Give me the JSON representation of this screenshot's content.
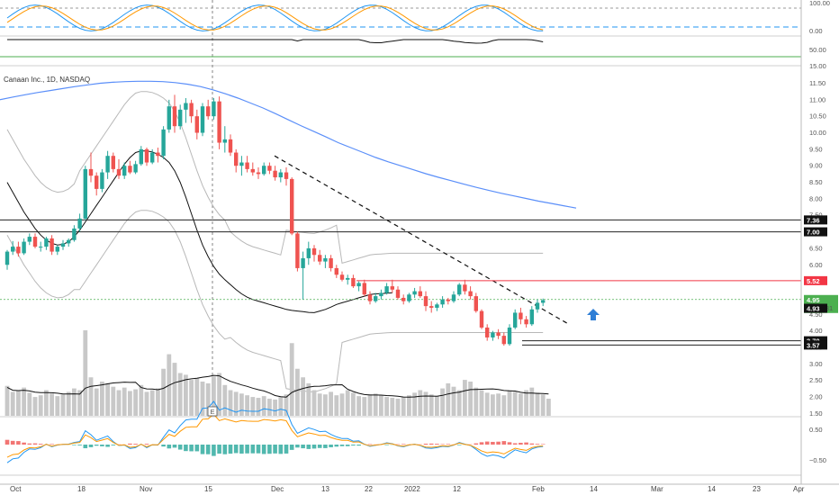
{
  "header": {
    "title": "Canaan Inc., 1D, NASDAQ"
  },
  "colors": {
    "up": "#26a69a",
    "down": "#ef5350",
    "ma": "#5b8ff9",
    "stoch_k": "#2196f3",
    "stoch_d": "#ff9800",
    "resistance": "#f23645",
    "price_box": "#4caf50"
  },
  "chart_data": {
    "type": "candlestick",
    "symbol": "Canaan Inc.",
    "interval": "1D",
    "exchange": "NASDAQ",
    "x_labels": [
      "Oct",
      "18",
      "Nov",
      "15",
      "Dec",
      "13",
      "22",
      "2022",
      "12",
      "Feb",
      "14",
      "Mar",
      "14",
      "23",
      "Apr"
    ],
    "price_axis": {
      "ticks": [
        "11.50",
        "11.00",
        "10.50",
        "10.00",
        "9.50",
        "9.00",
        "8.50",
        "8.00",
        "7.50",
        "7.00",
        "6.50",
        "6.00",
        "5.50",
        "5.00",
        "4.50",
        "4.00",
        "3.50",
        "3.00",
        "2.50",
        "2.00",
        "1.50"
      ],
      "range": [
        1.4,
        11.65
      ]
    },
    "candles": [
      {
        "o": 6.0,
        "h": 6.45,
        "l": 5.85,
        "c": 6.4
      },
      {
        "o": 6.4,
        "h": 6.72,
        "l": 6.3,
        "c": 6.55
      },
      {
        "o": 6.55,
        "h": 6.7,
        "l": 6.25,
        "c": 6.35
      },
      {
        "o": 6.35,
        "h": 6.8,
        "l": 6.3,
        "c": 6.7
      },
      {
        "o": 6.7,
        "h": 6.95,
        "l": 6.6,
        "c": 6.85
      },
      {
        "o": 6.85,
        "h": 6.95,
        "l": 6.5,
        "c": 6.55
      },
      {
        "o": 6.55,
        "h": 6.7,
        "l": 6.4,
        "c": 6.55
      },
      {
        "o": 6.55,
        "h": 6.85,
        "l": 6.45,
        "c": 6.8
      },
      {
        "o": 6.8,
        "h": 6.9,
        "l": 6.3,
        "c": 6.4
      },
      {
        "o": 6.4,
        "h": 6.6,
        "l": 6.3,
        "c": 6.55
      },
      {
        "o": 6.55,
        "h": 6.75,
        "l": 6.45,
        "c": 6.65
      },
      {
        "o": 6.65,
        "h": 6.8,
        "l": 6.55,
        "c": 6.75
      },
      {
        "o": 6.75,
        "h": 7.2,
        "l": 6.7,
        "c": 7.1
      },
      {
        "o": 7.1,
        "h": 7.55,
        "l": 7.0,
        "c": 7.4
      },
      {
        "o": 7.4,
        "h": 9.0,
        "l": 7.35,
        "c": 8.9
      },
      {
        "o": 8.9,
        "h": 9.4,
        "l": 8.5,
        "c": 8.7
      },
      {
        "o": 8.7,
        "h": 8.8,
        "l": 8.1,
        "c": 8.3
      },
      {
        "o": 8.3,
        "h": 8.9,
        "l": 8.2,
        "c": 8.8
      },
      {
        "o": 8.8,
        "h": 9.45,
        "l": 8.6,
        "c": 9.3
      },
      {
        "o": 9.3,
        "h": 9.4,
        "l": 8.8,
        "c": 8.9
      },
      {
        "o": 8.9,
        "h": 9.2,
        "l": 8.6,
        "c": 8.7
      },
      {
        "o": 8.7,
        "h": 9.1,
        "l": 8.6,
        "c": 9.0
      },
      {
        "o": 9.0,
        "h": 9.15,
        "l": 8.75,
        "c": 8.8
      },
      {
        "o": 8.8,
        "h": 9.15,
        "l": 8.75,
        "c": 9.05
      },
      {
        "o": 9.05,
        "h": 9.6,
        "l": 9.0,
        "c": 9.5
      },
      {
        "o": 9.5,
        "h": 9.55,
        "l": 9.0,
        "c": 9.1
      },
      {
        "o": 9.1,
        "h": 9.5,
        "l": 9.05,
        "c": 9.4
      },
      {
        "o": 9.4,
        "h": 9.55,
        "l": 9.1,
        "c": 9.3
      },
      {
        "o": 9.3,
        "h": 10.2,
        "l": 9.2,
        "c": 10.1
      },
      {
        "o": 10.1,
        "h": 11.0,
        "l": 10.0,
        "c": 10.8
      },
      {
        "o": 10.8,
        "h": 11.15,
        "l": 10.0,
        "c": 10.2
      },
      {
        "o": 10.2,
        "h": 10.85,
        "l": 10.1,
        "c": 10.7
      },
      {
        "o": 10.7,
        "h": 11.05,
        "l": 10.3,
        "c": 10.9
      },
      {
        "o": 10.9,
        "h": 11.0,
        "l": 10.3,
        "c": 10.5
      },
      {
        "o": 10.5,
        "h": 10.7,
        "l": 9.8,
        "c": 10.0
      },
      {
        "o": 10.0,
        "h": 10.9,
        "l": 9.9,
        "c": 10.8
      },
      {
        "o": 10.8,
        "h": 11.0,
        "l": 10.4,
        "c": 10.5
      },
      {
        "o": 10.5,
        "h": 11.05,
        "l": 10.4,
        "c": 10.95
      },
      {
        "o": 10.95,
        "h": 11.1,
        "l": 9.5,
        "c": 9.7
      },
      {
        "o": 9.7,
        "h": 10.2,
        "l": 9.4,
        "c": 9.8
      },
      {
        "o": 9.8,
        "h": 9.95,
        "l": 9.3,
        "c": 9.4
      },
      {
        "o": 9.4,
        "h": 9.5,
        "l": 8.8,
        "c": 9.0
      },
      {
        "o": 9.0,
        "h": 9.3,
        "l": 8.7,
        "c": 9.1
      },
      {
        "o": 9.1,
        "h": 9.3,
        "l": 8.8,
        "c": 8.9
      },
      {
        "o": 8.9,
        "h": 9.1,
        "l": 8.7,
        "c": 8.8
      },
      {
        "o": 8.8,
        "h": 8.95,
        "l": 8.6,
        "c": 8.75
      },
      {
        "o": 8.75,
        "h": 9.1,
        "l": 8.7,
        "c": 9.0
      },
      {
        "o": 9.0,
        "h": 9.1,
        "l": 8.75,
        "c": 8.85
      },
      {
        "o": 8.85,
        "h": 9.0,
        "l": 8.55,
        "c": 8.65
      },
      {
        "o": 8.65,
        "h": 8.9,
        "l": 8.5,
        "c": 8.8
      },
      {
        "o": 8.8,
        "h": 8.95,
        "l": 8.4,
        "c": 8.6
      },
      {
        "o": 8.6,
        "h": 8.65,
        "l": 6.9,
        "c": 6.95
      },
      {
        "o": 6.95,
        "h": 7.0,
        "l": 5.8,
        "c": 5.9
      },
      {
        "o": 5.9,
        "h": 6.4,
        "l": 4.95,
        "c": 6.2
      },
      {
        "o": 6.2,
        "h": 6.7,
        "l": 6.0,
        "c": 6.5
      },
      {
        "o": 6.5,
        "h": 6.6,
        "l": 6.1,
        "c": 6.3
      },
      {
        "o": 6.3,
        "h": 6.45,
        "l": 6.0,
        "c": 6.1
      },
      {
        "o": 6.1,
        "h": 6.3,
        "l": 5.9,
        "c": 6.2
      },
      {
        "o": 6.2,
        "h": 6.3,
        "l": 5.8,
        "c": 5.9
      },
      {
        "o": 5.9,
        "h": 6.0,
        "l": 5.6,
        "c": 5.7
      },
      {
        "o": 5.7,
        "h": 5.8,
        "l": 5.5,
        "c": 5.55
      },
      {
        "o": 5.55,
        "h": 5.7,
        "l": 5.4,
        "c": 5.6
      },
      {
        "o": 5.6,
        "h": 5.7,
        "l": 5.3,
        "c": 5.35
      },
      {
        "o": 5.35,
        "h": 5.5,
        "l": 5.2,
        "c": 5.45
      },
      {
        "o": 5.45,
        "h": 5.55,
        "l": 5.05,
        "c": 5.1
      },
      {
        "o": 5.1,
        "h": 5.2,
        "l": 4.8,
        "c": 4.9
      },
      {
        "o": 4.9,
        "h": 5.15,
        "l": 4.85,
        "c": 5.05
      },
      {
        "o": 5.05,
        "h": 5.25,
        "l": 4.95,
        "c": 5.15
      },
      {
        "o": 5.15,
        "h": 5.45,
        "l": 5.1,
        "c": 5.35
      },
      {
        "o": 5.35,
        "h": 5.55,
        "l": 5.15,
        "c": 5.25
      },
      {
        "o": 5.25,
        "h": 5.35,
        "l": 4.95,
        "c": 5.0
      },
      {
        "o": 5.0,
        "h": 5.1,
        "l": 4.8,
        "c": 4.9
      },
      {
        "o": 4.9,
        "h": 5.15,
        "l": 4.85,
        "c": 5.1
      },
      {
        "o": 5.1,
        "h": 5.3,
        "l": 5.0,
        "c": 5.2
      },
      {
        "o": 5.2,
        "h": 5.35,
        "l": 5.0,
        "c": 5.05
      },
      {
        "o": 5.05,
        "h": 5.2,
        "l": 4.6,
        "c": 4.75
      },
      {
        "o": 4.75,
        "h": 4.9,
        "l": 4.55,
        "c": 4.7
      },
      {
        "o": 4.7,
        "h": 4.85,
        "l": 4.6,
        "c": 4.8
      },
      {
        "o": 4.8,
        "h": 5.05,
        "l": 4.7,
        "c": 4.95
      },
      {
        "o": 4.95,
        "h": 5.0,
        "l": 4.8,
        "c": 4.9
      },
      {
        "o": 4.9,
        "h": 5.2,
        "l": 4.85,
        "c": 5.1
      },
      {
        "o": 5.1,
        "h": 5.45,
        "l": 5.05,
        "c": 5.4
      },
      {
        "o": 5.4,
        "h": 5.55,
        "l": 5.1,
        "c": 5.2
      },
      {
        "o": 5.2,
        "h": 5.35,
        "l": 4.95,
        "c": 5.05
      },
      {
        "o": 5.05,
        "h": 5.15,
        "l": 4.55,
        "c": 4.6
      },
      {
        "o": 4.6,
        "h": 4.65,
        "l": 4.05,
        "c": 4.1
      },
      {
        "o": 4.1,
        "h": 4.2,
        "l": 3.7,
        "c": 3.8
      },
      {
        "o": 3.8,
        "h": 4.0,
        "l": 3.7,
        "c": 3.95
      },
      {
        "o": 3.95,
        "h": 4.05,
        "l": 3.75,
        "c": 3.85
      },
      {
        "o": 3.85,
        "h": 3.95,
        "l": 3.55,
        "c": 3.6
      },
      {
        "o": 3.6,
        "h": 4.2,
        "l": 3.55,
        "c": 4.1
      },
      {
        "o": 4.1,
        "h": 4.65,
        "l": 4.05,
        "c": 4.55
      },
      {
        "o": 4.55,
        "h": 4.7,
        "l": 4.2,
        "c": 4.35
      },
      {
        "o": 4.35,
        "h": 4.45,
        "l": 4.1,
        "c": 4.2
      },
      {
        "o": 4.2,
        "h": 4.75,
        "l": 4.15,
        "c": 4.65
      },
      {
        "o": 4.65,
        "h": 4.95,
        "l": 4.55,
        "c": 4.85
      },
      {
        "o": 4.85,
        "h": 4.98,
        "l": 4.75,
        "c": 4.93
      }
    ],
    "volume": [
      0.35,
      0.28,
      0.3,
      0.33,
      0.27,
      0.22,
      0.24,
      0.3,
      0.26,
      0.23,
      0.25,
      0.28,
      0.32,
      0.3,
      1.0,
      0.45,
      0.32,
      0.4,
      0.38,
      0.34,
      0.3,
      0.33,
      0.29,
      0.31,
      0.36,
      0.28,
      0.3,
      0.32,
      0.55,
      0.72,
      0.62,
      0.5,
      0.48,
      0.42,
      0.44,
      0.4,
      0.38,
      0.46,
      0.5,
      0.36,
      0.3,
      0.28,
      0.26,
      0.24,
      0.22,
      0.21,
      0.23,
      0.2,
      0.19,
      0.22,
      0.25,
      0.85,
      0.55,
      0.45,
      0.38,
      0.3,
      0.26,
      0.25,
      0.28,
      0.24,
      0.26,
      0.3,
      0.27,
      0.23,
      0.22,
      0.25,
      0.26,
      0.24,
      0.22,
      0.21,
      0.2,
      0.22,
      0.24,
      0.27,
      0.3,
      0.28,
      0.25,
      0.23,
      0.32,
      0.38,
      0.34,
      0.3,
      0.42,
      0.4,
      0.33,
      0.3,
      0.27,
      0.25,
      0.26,
      0.24,
      0.3,
      0.28,
      0.26,
      0.3,
      0.33,
      0.27,
      0.25,
      0.2
    ],
    "moving_averages": {
      "ma200": [
        11.0,
        11.08,
        11.15,
        11.22,
        11.28,
        11.34,
        11.4,
        11.45,
        11.5,
        11.53,
        11.55,
        11.56,
        11.56,
        11.55,
        11.52,
        11.47,
        11.4,
        11.3,
        11.18,
        11.05,
        10.9,
        10.75,
        10.58,
        10.4,
        10.22,
        10.05,
        9.88,
        9.7,
        9.55,
        9.4,
        9.25,
        9.12,
        9.0,
        8.88,
        8.76,
        8.65,
        8.55,
        8.45,
        8.35,
        8.26,
        8.17,
        8.09,
        8.01,
        7.93,
        7.86,
        7.79,
        7.72
      ],
      "ma20": [
        8.5,
        8.2,
        7.9,
        7.6,
        7.35,
        7.1,
        6.9,
        6.75,
        6.65,
        6.6,
        6.62,
        6.7,
        6.85,
        7.05,
        7.3,
        7.55,
        7.8,
        8.05,
        8.3,
        8.55,
        8.8,
        9.05,
        9.25,
        9.4,
        9.45,
        9.45,
        9.42,
        9.35,
        9.25,
        9.1,
        8.85,
        8.5,
        8.05,
        7.55,
        7.05,
        6.6,
        6.25,
        5.95,
        5.72,
        5.55,
        5.4,
        5.25,
        5.12,
        5.02,
        4.95,
        4.9,
        4.85,
        4.8,
        4.75,
        4.7,
        4.65,
        4.62,
        4.6,
        4.58,
        4.56,
        4.55,
        4.6,
        4.65,
        4.72,
        4.8,
        4.85,
        4.9,
        4.95,
        5.0,
        5.05,
        5.1,
        5.12,
        5.13,
        5.14,
        5.15
      ]
    },
    "levels": [
      {
        "price": 7.36,
        "label": "7.36",
        "style": "black"
      },
      {
        "price": 7.0,
        "label": "7.00",
        "style": "black"
      },
      {
        "price": 5.52,
        "label": "5.52",
        "style": "red"
      },
      {
        "price": 3.7,
        "label": "3.70",
        "style": "black"
      },
      {
        "price": 3.57,
        "label": "3.57",
        "style": "black"
      }
    ],
    "last_price": {
      "price": 4.95,
      "label": "4.95",
      "countdown": "04:30:31"
    },
    "prev_close": {
      "price": 4.93,
      "label": "4.93"
    },
    "stoch_axis": [
      "100.00",
      "0.00"
    ],
    "rsi_axis": [
      "50.00",
      "15.00"
    ],
    "volume_marker": "E",
    "macd_axis": [
      "0.50",
      "−0.50"
    ]
  }
}
